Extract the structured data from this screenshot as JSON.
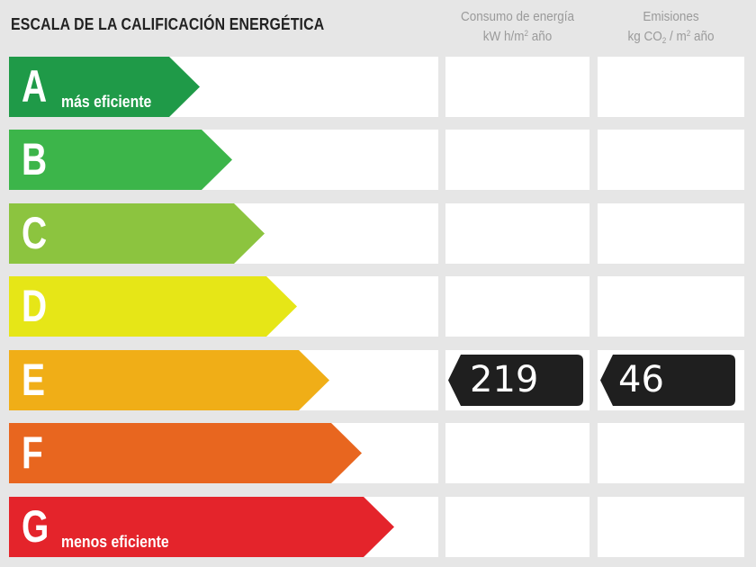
{
  "title": "ESCALA DE LA CALIFICACIÓN ENERGÉTICA",
  "columns": {
    "consumo": {
      "line1": "Consumo de energía",
      "line2_prefix": "kW h/m",
      "line2_sup": "2",
      "line2_suffix": " año"
    },
    "emisiones": {
      "line1": "Emisiones",
      "line2_prefix": "kg CO",
      "line2_sub": "2",
      "line2_mid": " / m",
      "line2_sup": "2",
      "line2_suffix": " año"
    }
  },
  "ratings": [
    {
      "letter": "A",
      "sublabel": "más eficiente",
      "color": "#1f9a48"
    },
    {
      "letter": "B",
      "sublabel": "",
      "color": "#3cb54a"
    },
    {
      "letter": "C",
      "sublabel": "",
      "color": "#8cc43f"
    },
    {
      "letter": "D",
      "sublabel": "",
      "color": "#e6e617"
    },
    {
      "letter": "E",
      "sublabel": "",
      "color": "#f0ae17"
    },
    {
      "letter": "F",
      "sublabel": "",
      "color": "#e8661f"
    },
    {
      "letter": "G",
      "sublabel": "menos eficiente",
      "color": "#e4242b"
    }
  ],
  "current": {
    "rating": "E",
    "consumo_value": "219",
    "emisiones_value": "46",
    "badge_color": "#1f1f1f"
  }
}
